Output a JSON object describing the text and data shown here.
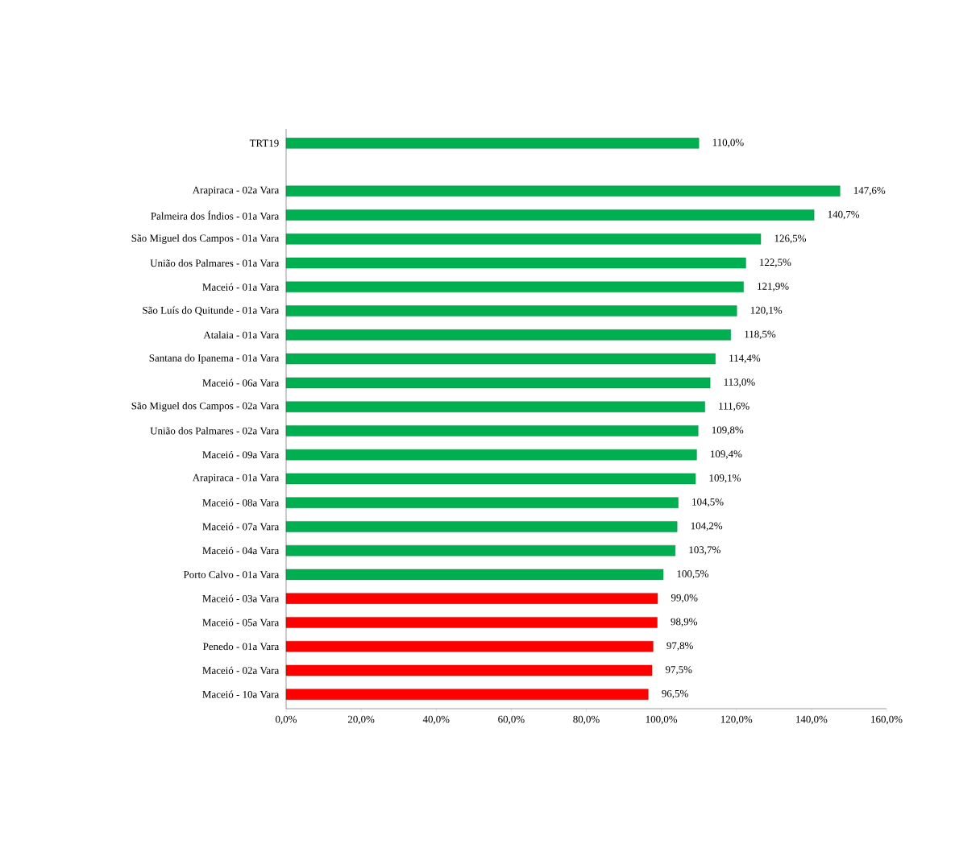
{
  "chart_data": {
    "type": "bar",
    "orientation": "horizontal",
    "categories": [
      "TRT19",
      null,
      "Arapiraca  - 02a Vara",
      "Palmeira dos Índios  - 01a Vara",
      "São Miguel dos Campos  - 01a Vara",
      "União dos Palmares  - 01a Vara",
      "Maceió  - 01a Vara",
      "São Luís do Quitunde  - 01a Vara",
      "Atalaia  - 01a Vara",
      "Santana do Ipanema  - 01a Vara",
      "Maceió  - 06a Vara",
      "São Miguel dos Campos  - 02a Vara",
      "União dos Palmares  - 02a Vara",
      "Maceió  - 09a Vara",
      "Arapiraca  - 01a Vara",
      "Maceió  - 08a Vara",
      "Maceió  - 07a Vara",
      "Maceió  - 04a Vara",
      "Porto Calvo  - 01a Vara",
      "Maceió  - 03a Vara",
      "Maceió  - 05a Vara",
      "Penedo  - 01a Vara",
      "Maceió  - 02a Vara",
      "Maceió  - 10a Vara"
    ],
    "values": [
      110.0,
      null,
      147.6,
      140.7,
      126.5,
      122.5,
      121.9,
      120.1,
      118.5,
      114.4,
      113.0,
      111.6,
      109.8,
      109.4,
      109.1,
      104.5,
      104.2,
      103.7,
      100.5,
      99.0,
      98.9,
      97.8,
      97.5,
      96.5
    ],
    "value_labels": [
      "110,0%",
      null,
      "147,6%",
      "140,7%",
      "126,5%",
      "122,5%",
      "121,9%",
      "120,1%",
      "118,5%",
      "114,4%",
      "113,0%",
      "111,6%",
      "109,8%",
      "109,4%",
      "109,1%",
      "104,5%",
      "104,2%",
      "103,7%",
      "100,5%",
      "99,0%",
      "98,9%",
      "97,8%",
      "97,5%",
      "96,5%"
    ],
    "colors": [
      "#00b050",
      null,
      "#00b050",
      "#00b050",
      "#00b050",
      "#00b050",
      "#00b050",
      "#00b050",
      "#00b050",
      "#00b050",
      "#00b050",
      "#00b050",
      "#00b050",
      "#00b050",
      "#00b050",
      "#00b050",
      "#00b050",
      "#00b050",
      "#00b050",
      "#ff0000",
      "#ff0000",
      "#ff0000",
      "#ff0000",
      "#ff0000"
    ],
    "xlim": [
      0,
      160
    ],
    "xticks": [
      {
        "value": 0,
        "label": "0,0%"
      },
      {
        "value": 20,
        "label": "20,0%"
      },
      {
        "value": 40,
        "label": "40,0%"
      },
      {
        "value": 60,
        "label": "60,0%"
      },
      {
        "value": 80,
        "label": "80,0%"
      },
      {
        "value": 100,
        "label": "100,0%"
      },
      {
        "value": 120,
        "label": "120,0%"
      },
      {
        "value": 140,
        "label": "140,0%"
      },
      {
        "value": 160,
        "label": "160,0%"
      }
    ]
  }
}
